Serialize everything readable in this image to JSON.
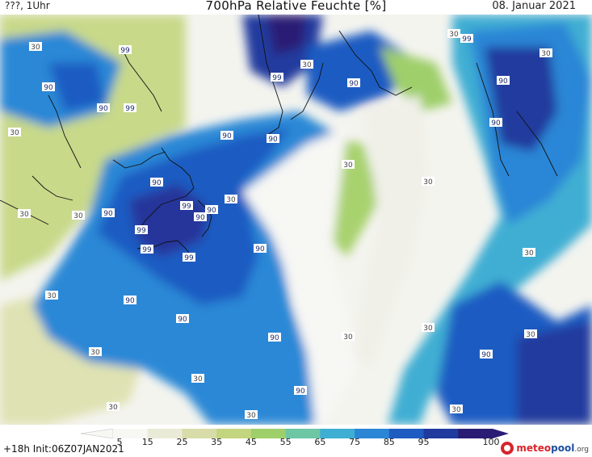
{
  "header": {
    "left_text": "???, 1Uhr",
    "title": "700hPa Relative Feuchte [%]",
    "date": "08. Januar 2021"
  },
  "footer": {
    "init_text": "+18h Init:06Z07JAN2021"
  },
  "logo": {
    "text_red": "meteo",
    "text_blue": "pool",
    "suffix": ".org"
  },
  "colorbar": {
    "ticks": [
      "5",
      "15",
      "25",
      "35",
      "45",
      "55",
      "65",
      "75",
      "85",
      "95",
      "100"
    ],
    "colors": [
      "#f7f7f4",
      "#e9ebd7",
      "#d8dca8",
      "#c3d57e",
      "#9fcf6a",
      "#6dc6a4",
      "#3faed3",
      "#2b86d6",
      "#1f5cc2",
      "#213a9e",
      "#2a1c74"
    ]
  },
  "map_labels": [
    {
      "text": "30"
    },
    {
      "text": "99"
    },
    {
      "text": "99"
    },
    {
      "text": "30"
    },
    {
      "text": "90"
    },
    {
      "text": "90"
    },
    {
      "text": "30"
    },
    {
      "text": "90"
    },
    {
      "text": "90"
    },
    {
      "text": "99"
    },
    {
      "text": "99"
    },
    {
      "text": "90"
    },
    {
      "text": "99"
    },
    {
      "text": "99"
    },
    {
      "text": "90"
    },
    {
      "text": "30"
    },
    {
      "text": "90"
    },
    {
      "text": "90"
    },
    {
      "text": "30"
    },
    {
      "text": "90"
    },
    {
      "text": "99"
    },
    {
      "text": "30"
    },
    {
      "text": "30"
    },
    {
      "text": "90"
    },
    {
      "text": "30"
    },
    {
      "text": "90"
    },
    {
      "text": "90"
    },
    {
      "text": "30"
    },
    {
      "text": "30"
    },
    {
      "text": "30"
    },
    {
      "text": "90"
    },
    {
      "text": "30"
    },
    {
      "text": "90"
    },
    {
      "text": "30"
    },
    {
      "text": "99"
    },
    {
      "text": "90"
    },
    {
      "text": "30"
    },
    {
      "text": "30"
    },
    {
      "text": "90"
    },
    {
      "text": "30"
    },
    {
      "text": "90"
    },
    {
      "text": "30"
    },
    {
      "text": "30"
    },
    {
      "text": "30"
    },
    {
      "text": "30"
    }
  ]
}
